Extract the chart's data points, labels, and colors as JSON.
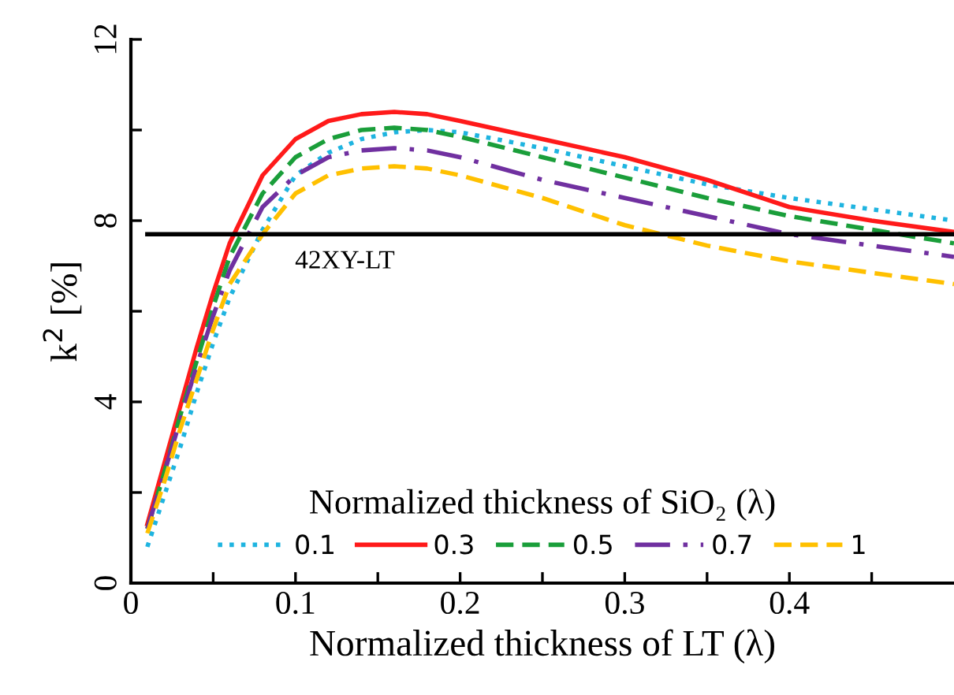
{
  "chart_data": {
    "type": "line",
    "xlabel": "Normalized thickness of LT (λ)",
    "ylabel": "k$^{2}$ [%]",
    "legend_title": "Normalized thickness of SiO₂ (λ)",
    "x": [
      0.01,
      0.02,
      0.03,
      0.04,
      0.05,
      0.06,
      0.08,
      0.1,
      0.12,
      0.14,
      0.16,
      0.18,
      0.2,
      0.25,
      0.3,
      0.35,
      0.4,
      0.45,
      0.5
    ],
    "series": [
      {
        "name": "0.1",
        "color": "#1fb4e0",
        "line_style": "dotted",
        "values": [
          0.8,
          1.9,
          3.0,
          4.2,
          5.3,
          6.3,
          7.8,
          9.0,
          9.5,
          9.8,
          9.95,
          10.0,
          9.95,
          9.6,
          9.2,
          8.8,
          8.5,
          8.25,
          8.0
        ]
      },
      {
        "name": "0.3",
        "color": "#ff1a1a",
        "line_style": "solid",
        "values": [
          1.3,
          2.6,
          3.9,
          5.2,
          6.4,
          7.5,
          9.0,
          9.8,
          10.2,
          10.35,
          10.4,
          10.35,
          10.2,
          9.8,
          9.4,
          8.9,
          8.3,
          8.0,
          7.75
        ]
      },
      {
        "name": "0.5",
        "color": "#1a9e3a",
        "line_style": "dashed",
        "values": [
          1.2,
          2.4,
          3.7,
          4.9,
          6.1,
          7.2,
          8.6,
          9.4,
          9.8,
          10.0,
          10.05,
          10.0,
          9.85,
          9.4,
          8.95,
          8.5,
          8.1,
          7.8,
          7.5
        ]
      },
      {
        "name": "0.7",
        "color": "#7030a0",
        "line_style": "dashdot",
        "values": [
          1.2,
          2.4,
          3.6,
          4.8,
          5.9,
          6.9,
          8.3,
          9.0,
          9.4,
          9.55,
          9.6,
          9.55,
          9.4,
          8.9,
          8.5,
          8.1,
          7.7,
          7.45,
          7.2
        ]
      },
      {
        "name": "1",
        "color": "#ffc000",
        "line_style": "dashed",
        "values": [
          1.1,
          2.2,
          3.4,
          4.5,
          5.6,
          6.6,
          7.7,
          8.6,
          9.0,
          9.15,
          9.2,
          9.15,
          9.0,
          8.5,
          7.9,
          7.45,
          7.1,
          6.85,
          6.6
        ]
      }
    ],
    "ref_lines": [
      {
        "axis": "y",
        "value": 7.7,
        "label": "42XY-LT",
        "color": "#000000"
      }
    ],
    "xlim": [
      0,
      0.5
    ],
    "xticks": [
      0,
      {
        "value": 0.05,
        "label": null
      },
      0.1,
      {
        "value": 0.15,
        "label": null
      },
      0.2,
      {
        "value": 0.25,
        "label": null
      },
      0.3,
      {
        "value": 0.35,
        "label": null
      },
      0.4,
      {
        "value": 0.45,
        "label": null
      }
    ],
    "ylim": [
      0,
      12
    ],
    "yticks": [
      0,
      {
        "value": 2,
        "label": null
      },
      4,
      {
        "value": 6,
        "label": null
      },
      8,
      {
        "value": 10,
        "label": null
      },
      12
    ],
    "grid": false,
    "legend": "bottom",
    "marker": "none"
  }
}
